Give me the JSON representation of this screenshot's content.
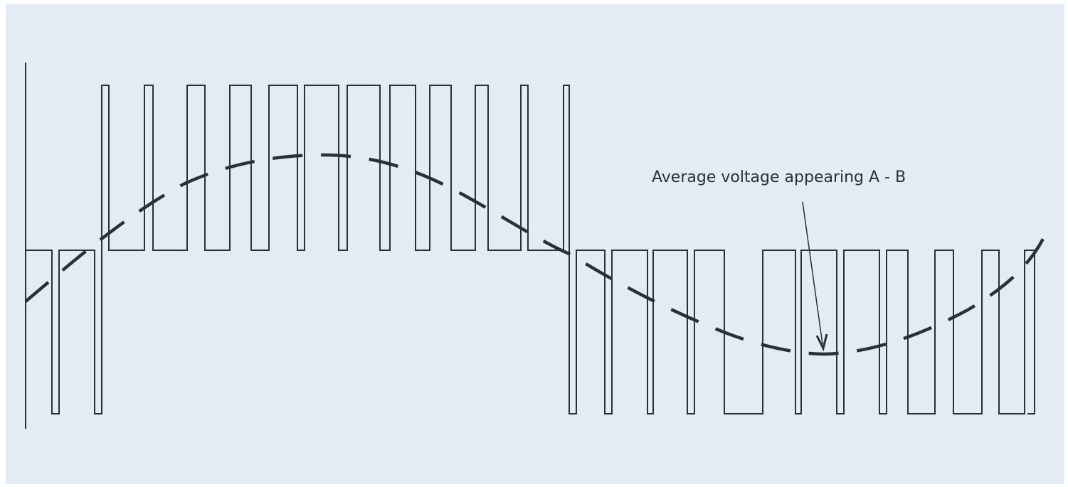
{
  "figure": {
    "background": "#e4ebf5",
    "line_color": "#2a2f38"
  },
  "diagram": {
    "pwm_signal": "pulse-width modulated line-to-line voltage",
    "average_wave": "dashed sinusoid",
    "annotation": {
      "text": "Average voltage appearing A - B"
    }
  }
}
